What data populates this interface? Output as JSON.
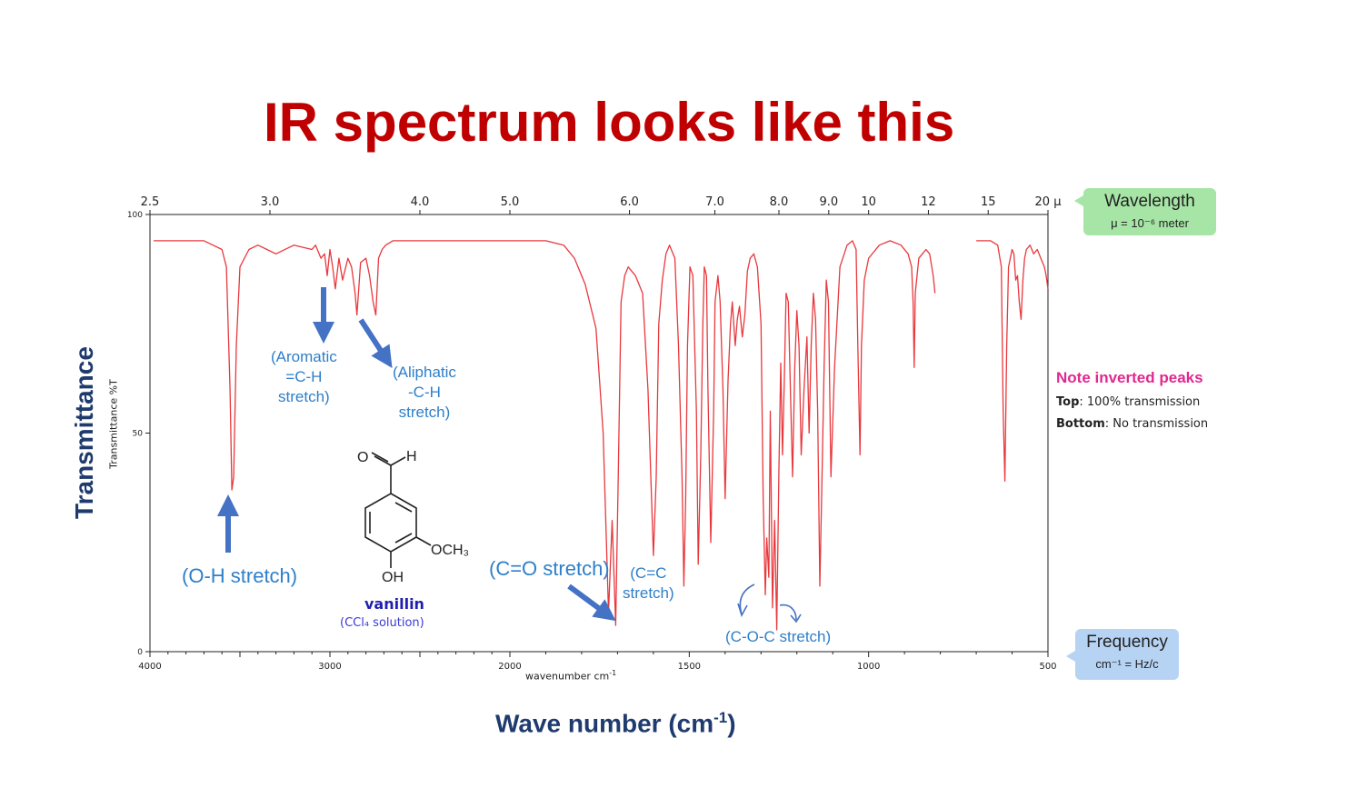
{
  "title": "IR spectrum looks like this",
  "big_axis_labels": {
    "y": "Transmittance",
    "x": "Wave number (cm",
    "x_sup": "-1",
    "x_tail": ")"
  },
  "axis_labels": {
    "y": "Transmittance %T",
    "x": "wavenumber cm",
    "x_sup": "-1"
  },
  "wavelength_callout": {
    "title": "Wavelength",
    "subtitle": "μ = 10⁻⁶ meter"
  },
  "frequency_callout": {
    "title": "Frequency",
    "subtitle": "cm⁻¹ = Hz/c"
  },
  "note": {
    "heading": "Note inverted peaks",
    "top_key": "Top",
    "top_text": ": 100% transmission",
    "bottom_key": "Bottom",
    "bottom_text": ": No transmission"
  },
  "compound": {
    "name": "vanillin",
    "solvent": "(CCl₄ solution)",
    "atoms": {
      "o": "O",
      "h": "H",
      "och3": "OCH₃",
      "oh": "OH"
    }
  },
  "annotations": {
    "aromatic": [
      "(Aromatic",
      "=C-H",
      "stretch)"
    ],
    "aliphatic": [
      "(Aliphatic",
      "-C-H",
      "stretch)"
    ],
    "oh": "(O-H stretch)",
    "co": "(C=O stretch)",
    "cc": [
      "(C=C",
      "stretch)"
    ],
    "coc": "(C-O-C stretch)"
  },
  "colors": {
    "spectrum": "#e8383d",
    "title": "#c00000",
    "annotation": "#2e7fc9",
    "arrow": "#4472c4"
  },
  "chart_data": {
    "type": "line",
    "xlim": [
      4000,
      500
    ],
    "ylim": [
      0,
      100
    ],
    "x_ticks": [
      4000,
      3000,
      2000,
      1500,
      1000,
      500
    ],
    "x_tick_labels": [
      "4000",
      "3000",
      "2000",
      "1500",
      "1000",
      "500"
    ],
    "y_ticks": [
      0,
      50,
      100
    ],
    "y_tick_labels": [
      "0",
      "50",
      "100"
    ],
    "top_ticks": [
      {
        "wl": 2.5,
        "label": "2.5"
      },
      {
        "wl": 3.0,
        "label": "3.0"
      },
      {
        "wl": 4.0,
        "label": "4.0"
      },
      {
        "wl": 5.0,
        "label": "5.0"
      },
      {
        "wl": 6.0,
        "label": "6.0"
      },
      {
        "wl": 7.0,
        "label": "7.0"
      },
      {
        "wl": 8.0,
        "label": "8.0"
      },
      {
        "wl": 9.0,
        "label": "9.0"
      },
      {
        "wl": 10,
        "label": "10"
      },
      {
        "wl": 12,
        "label": "12"
      },
      {
        "wl": 15,
        "label": "15"
      },
      {
        "wl": 20,
        "label": "20 μ"
      }
    ],
    "series": [
      {
        "segments": [
          {
            "x": [
              3980,
              3800,
              3700,
              3650,
              3600,
              3575,
              3555,
              3545,
              3535,
              3520,
              3500,
              3450,
              3400,
              3350,
              3300,
              3200,
              3100,
              3080,
              3050,
              3030,
              3015,
              3000,
              2985,
              2970,
              2950,
              2930,
              2900,
              2880,
              2860,
              2850,
              2830,
              2800,
              2780,
              2760,
              2745,
              2730,
              2710,
              2690,
              2650,
              2500,
              2300,
              2100,
              1900,
              1850,
              1820,
              1790,
              1760,
              1740,
              1725,
              1715,
              1705,
              1698,
              1690,
              1680,
              1670,
              1650,
              1630,
              1615,
              1600,
              1592,
              1585,
              1575,
              1565,
              1555,
              1540,
              1530,
              1520,
              1515,
              1510,
              1505,
              1498,
              1490,
              1480,
              1475,
              1468,
              1462,
              1458,
              1452,
              1448,
              1440,
              1432,
              1428,
              1420,
              1414,
              1406,
              1400,
              1392,
              1385,
              1380,
              1372,
              1366,
              1360,
              1352,
              1345,
              1338,
              1330,
              1320,
              1310,
              1300,
              1294,
              1288,
              1284,
              1278,
              1274,
              1268,
              1262,
              1256,
              1250,
              1245,
              1240,
              1235,
              1230,
              1224,
              1218,
              1212,
              1206,
              1200,
              1194,
              1188,
              1180,
              1172,
              1166,
              1160,
              1154,
              1148,
              1142,
              1136,
              1130,
              1124,
              1118,
              1112,
              1105,
              1095,
              1080,
              1060,
              1045,
              1035,
              1030,
              1024,
              1020,
              1012,
              1000,
              970,
              940,
              910,
              890,
              880,
              876,
              873,
              870,
              860,
              840,
              830,
              820,
              815
            ],
            "y": [
              94,
              94,
              94,
              93,
              92,
              88,
              60,
              37,
              40,
              70,
              88,
              92,
              93,
              92,
              91,
              93,
              92,
              93,
              90,
              91,
              86,
              92,
              88,
              83,
              90,
              85,
              90,
              88,
              82,
              77,
              89,
              90,
              86,
              80,
              77,
              90,
              92,
              93,
              94,
              94,
              94,
              94,
              94,
              93,
              90,
              84,
              74,
              50,
              9,
              30,
              6,
              40,
              80,
              86,
              88,
              86,
              82,
              60,
              22,
              40,
              75,
              85,
              91,
              93,
              90,
              70,
              40,
              15,
              35,
              70,
              88,
              86,
              55,
              20,
              45,
              75,
              88,
              86,
              60,
              25,
              55,
              80,
              86,
              80,
              60,
              35,
              62,
              75,
              80,
              70,
              76,
              79,
              72,
              77,
              87,
              90,
              91,
              88,
              75,
              36,
              13,
              26,
              17,
              55,
              10,
              30,
              5,
              42,
              66,
              45,
              62,
              82,
              80,
              60,
              40,
              65,
              78,
              70,
              45,
              60,
              72,
              50,
              70,
              82,
              76,
              55,
              15,
              40,
              65,
              85,
              80,
              40,
              65,
              88,
              93,
              94,
              92,
              70,
              45,
              70,
              85,
              90,
              93,
              94,
              93,
              91,
              88,
              80,
              65,
              82,
              90,
              92,
              91,
              86,
              82
            ]
          },
          {
            "x": [
              700,
              680,
              660,
              640,
              630,
              625,
              620,
              615,
              610,
              600,
              595,
              590,
              585,
              580,
              575,
              570,
              565,
              560,
              550,
              540,
              530,
              520,
              510,
              505,
              500
            ],
            "y": [
              94,
              94,
              94,
              93,
              88,
              55,
              39,
              70,
              88,
              92,
              91,
              85,
              86,
              80,
              76,
              85,
              90,
              92,
              93,
              91,
              92,
              90,
              88,
              86,
              83
            ]
          }
        ]
      }
    ]
  }
}
